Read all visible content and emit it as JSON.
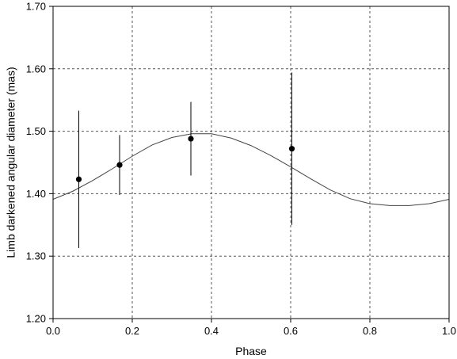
{
  "chart_data": {
    "type": "scatter",
    "xlabel": "Phase",
    "ylabel": "Limb darkened angular diameter (mas)",
    "xlim": [
      0.0,
      1.0
    ],
    "ylim": [
      1.2,
      1.7
    ],
    "grid": true,
    "x_ticks": [
      "0.0",
      "0.2",
      "0.4",
      "0.6",
      "0.8",
      "1.0"
    ],
    "y_ticks": [
      "1.20",
      "1.30",
      "1.40",
      "1.50",
      "1.60",
      "1.70"
    ],
    "series": [
      {
        "type": "scatter-errorbar",
        "points": [
          {
            "x": 0.065,
            "y": 1.423,
            "err": 0.11
          },
          {
            "x": 0.168,
            "y": 1.446,
            "err": 0.048
          },
          {
            "x": 0.348,
            "y": 1.488,
            "err": 0.059
          },
          {
            "x": 0.603,
            "y": 1.472,
            "err": 0.122
          }
        ],
        "color": "#000000"
      },
      {
        "type": "line",
        "x": [
          0.0,
          0.05,
          0.1,
          0.15,
          0.2,
          0.25,
          0.3,
          0.35,
          0.4,
          0.45,
          0.5,
          0.55,
          0.6,
          0.65,
          0.7,
          0.75,
          0.8,
          0.85,
          0.9,
          0.95,
          1.0
        ],
        "y": [
          1.391,
          1.404,
          1.421,
          1.44,
          1.46,
          1.478,
          1.49,
          1.496,
          1.496,
          1.489,
          1.477,
          1.461,
          1.443,
          1.424,
          1.406,
          1.392,
          1.384,
          1.381,
          1.381,
          1.384,
          1.391
        ],
        "color": "#444444"
      }
    ]
  }
}
